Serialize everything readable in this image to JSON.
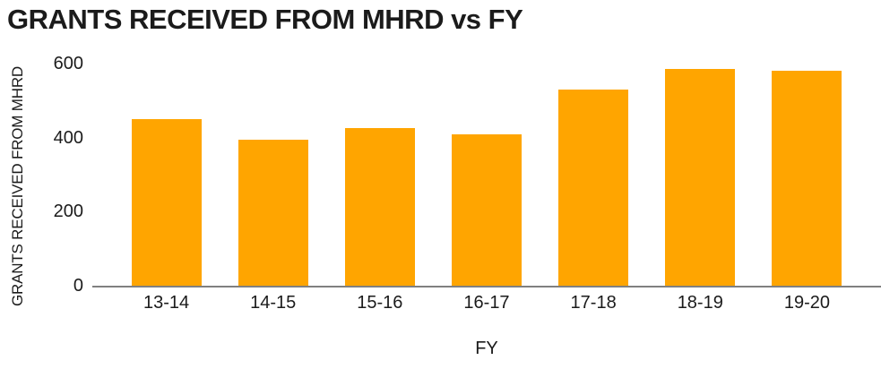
{
  "title": "GRANTS RECEIVED FROM MHRD vs FY",
  "chart_data": {
    "type": "bar",
    "title": "GRANTS RECEIVED FROM MHRD vs FY",
    "categories": [
      "13-14",
      "14-15",
      "15-16",
      "16-17",
      "17-18",
      "18-19",
      "19-20"
    ],
    "values": [
      450,
      395,
      425,
      410,
      530,
      585,
      580
    ],
    "xlabel": "FY",
    "ylabel": "GRANTS RECEIVED FROM MHRD",
    "yticks": [
      0,
      200,
      400,
      600
    ],
    "ylim": [
      0,
      600
    ],
    "bar_color": "#FFA500",
    "axis_line_color": "#808080",
    "text_color": "#1b1b1b",
    "background_color": "#FFFFFF",
    "grid": false,
    "legend_position": "none"
  }
}
